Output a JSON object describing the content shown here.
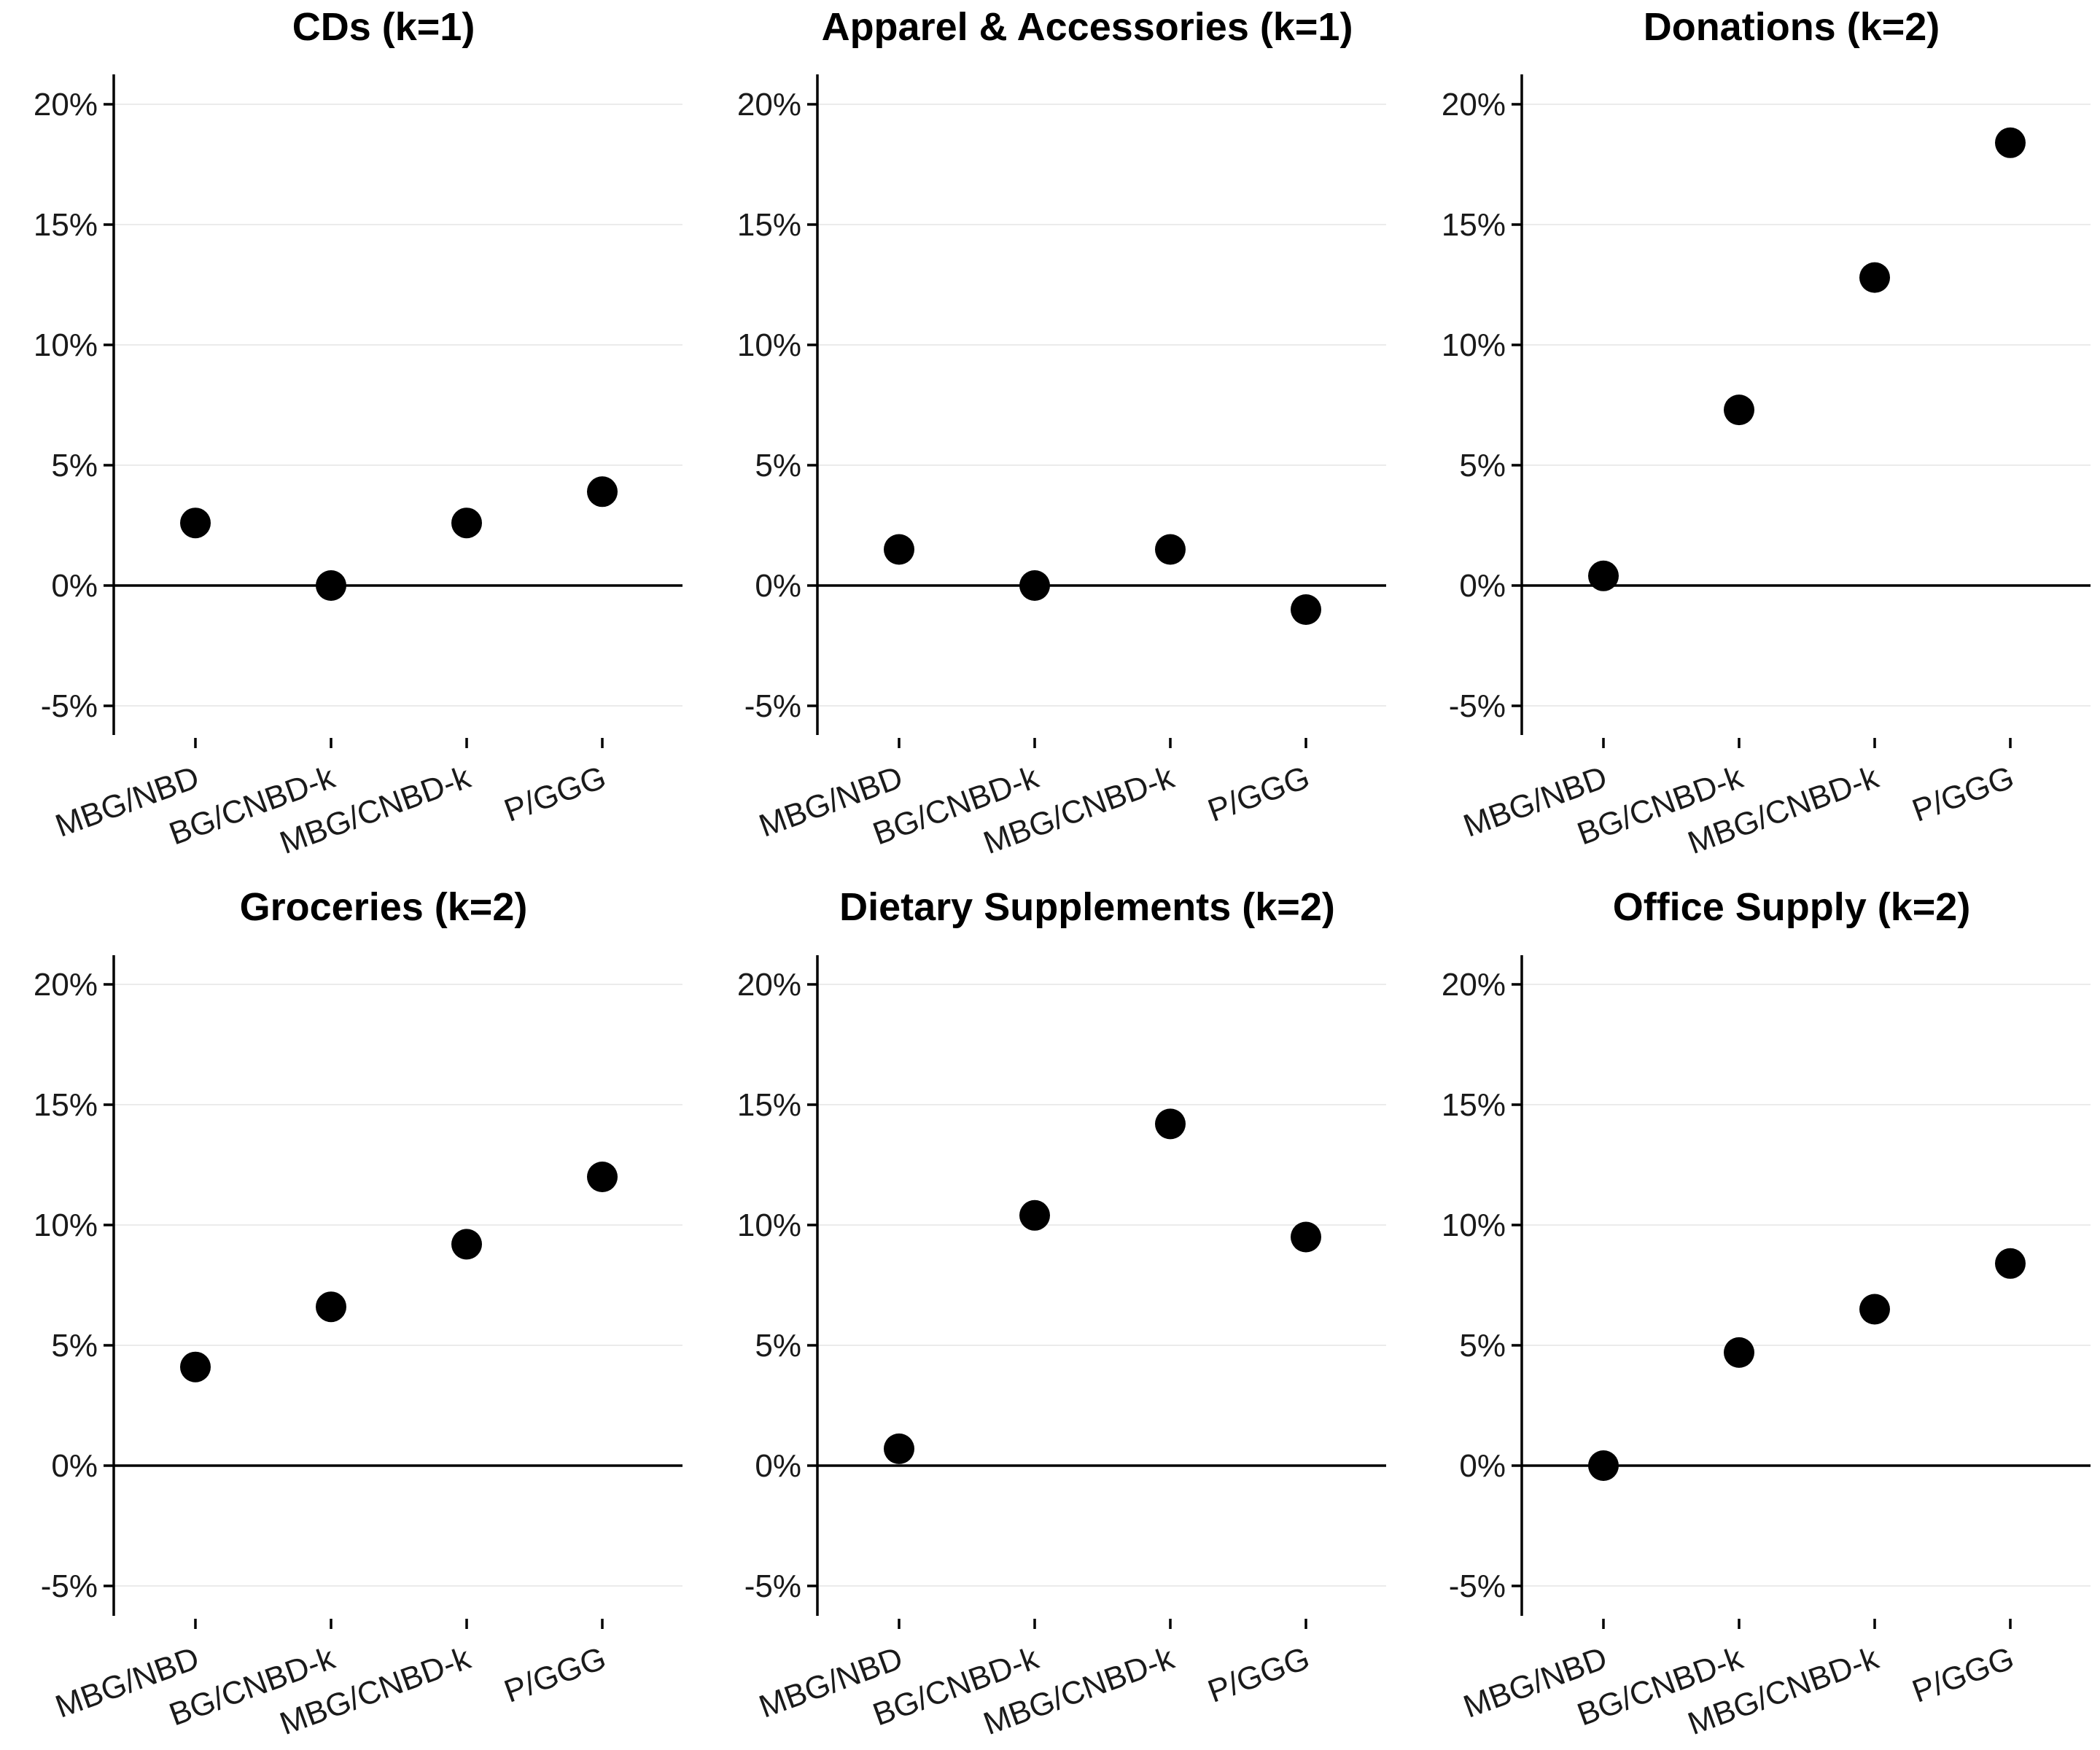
{
  "chart_data": [
    {
      "type": "scatter",
      "title": "CDs (k=1)",
      "categories": [
        "MBG/NBD",
        "BG/CNBD-k",
        "MBG/CNBD-k",
        "P/GGG"
      ],
      "values": [
        2.6,
        0.0,
        2.6,
        3.9
      ],
      "ylim": [
        -6.2,
        21.3
      ],
      "yticks": [
        -5,
        0,
        5,
        10,
        15,
        20
      ],
      "ytick_labels": [
        "-5%",
        "0%",
        "5%",
        "10%",
        "15%",
        "20%"
      ],
      "reference_line": 0,
      "grid": true
    },
    {
      "type": "scatter",
      "title": "Apparel & Accessories (k=1)",
      "categories": [
        "MBG/NBD",
        "BG/CNBD-k",
        "MBG/CNBD-k",
        "P/GGG"
      ],
      "values": [
        1.5,
        0.0,
        1.5,
        -1.0
      ],
      "ylim": [
        -6.2,
        21.3
      ],
      "yticks": [
        -5,
        0,
        5,
        10,
        15,
        20
      ],
      "ytick_labels": [
        "-5%",
        "0%",
        "5%",
        "10%",
        "15%",
        "20%"
      ],
      "reference_line": 0,
      "grid": true
    },
    {
      "type": "scatter",
      "title": "Donations (k=2)",
      "categories": [
        "MBG/NBD",
        "BG/CNBD-k",
        "MBG/CNBD-k",
        "P/GGG"
      ],
      "values": [
        0.4,
        7.3,
        12.8,
        18.4
      ],
      "ylim": [
        -6.2,
        21.3
      ],
      "yticks": [
        -5,
        0,
        5,
        10,
        15,
        20
      ],
      "ytick_labels": [
        "-5%",
        "0%",
        "5%",
        "10%",
        "15%",
        "20%"
      ],
      "reference_line": 0,
      "grid": true
    },
    {
      "type": "scatter",
      "title": "Groceries (k=2)",
      "categories": [
        "MBG/NBD",
        "BG/CNBD-k",
        "MBG/CNBD-k",
        "P/GGG"
      ],
      "values": [
        4.1,
        6.6,
        9.2,
        12.0
      ],
      "ylim": [
        -6.2,
        21.3
      ],
      "yticks": [
        -5,
        0,
        5,
        10,
        15,
        20
      ],
      "ytick_labels": [
        "-5%",
        "0%",
        "5%",
        "10%",
        "15%",
        "20%"
      ],
      "reference_line": 0,
      "grid": true
    },
    {
      "type": "scatter",
      "title": "Dietary Supplements (k=2)",
      "categories": [
        "MBG/NBD",
        "BG/CNBD-k",
        "MBG/CNBD-k",
        "P/GGG"
      ],
      "values": [
        0.7,
        10.4,
        14.2,
        9.5
      ],
      "ylim": [
        -6.2,
        21.3
      ],
      "yticks": [
        -5,
        0,
        5,
        10,
        15,
        20
      ],
      "ytick_labels": [
        "-5%",
        "0%",
        "5%",
        "10%",
        "15%",
        "20%"
      ],
      "reference_line": 0,
      "grid": true
    },
    {
      "type": "scatter",
      "title": "Office Supply (k=2)",
      "categories": [
        "MBG/NBD",
        "BG/CNBD-k",
        "MBG/CNBD-k",
        "P/GGG"
      ],
      "values": [
        0.0,
        4.7,
        6.5,
        8.4
      ],
      "ylim": [
        -6.2,
        21.3
      ],
      "yticks": [
        -5,
        0,
        5,
        10,
        15,
        20
      ],
      "ytick_labels": [
        "-5%",
        "0%",
        "5%",
        "10%",
        "15%",
        "20%"
      ],
      "reference_line": 0,
      "grid": true
    }
  ]
}
